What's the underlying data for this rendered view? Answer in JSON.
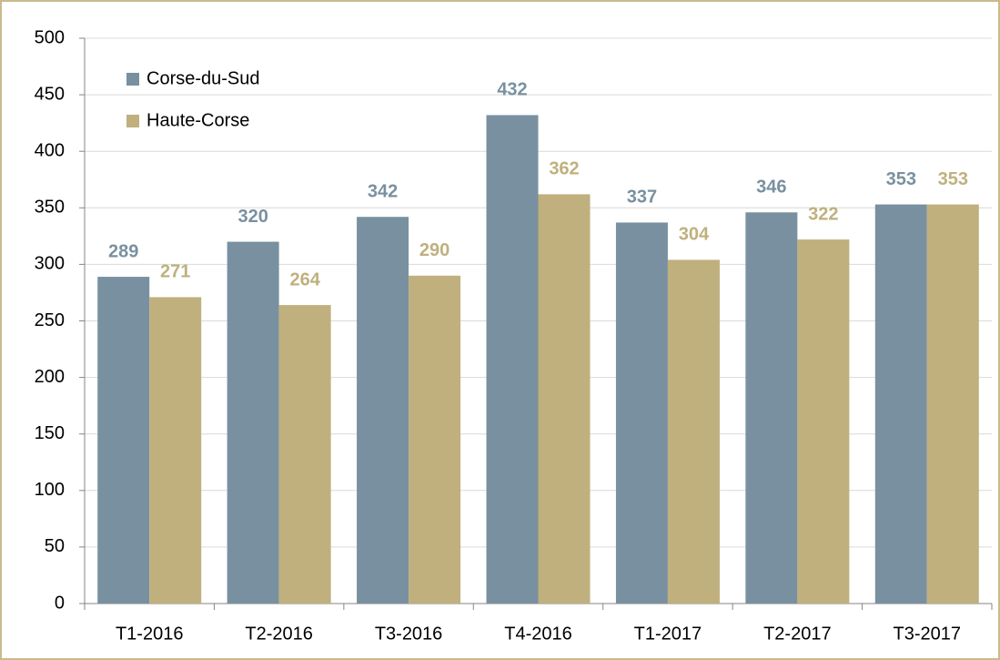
{
  "chart_data": {
    "type": "bar",
    "categories": [
      "T1-2016",
      "T2-2016",
      "T3-2016",
      "T4-2016",
      "T1-2017",
      "T2-2017",
      "T3-2017"
    ],
    "series": [
      {
        "name": "Corse-du-Sud",
        "color": "#7990a0",
        "values": [
          289,
          320,
          342,
          432,
          337,
          346,
          353
        ]
      },
      {
        "name": "Haute-Corse",
        "color": "#bfb07e",
        "values": [
          271,
          264,
          290,
          362,
          304,
          322,
          353
        ]
      }
    ],
    "ylim": [
      0,
      500
    ],
    "yticks": [
      0,
      50,
      100,
      150,
      200,
      250,
      300,
      350,
      400,
      450,
      500
    ],
    "grid": true,
    "legend": "top-left"
  }
}
